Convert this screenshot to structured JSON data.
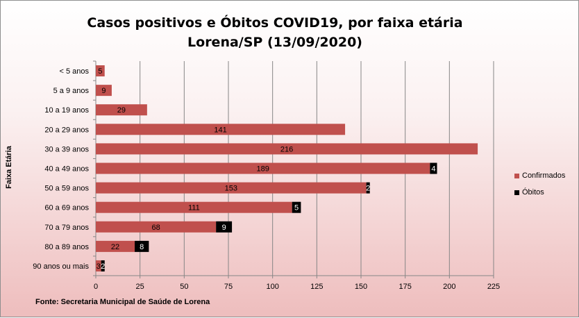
{
  "chart_data": {
    "type": "bar",
    "orientation": "horizontal",
    "stacked": true,
    "title_line1": "Casos positivos e Óbitos COVID19, por faixa etária",
    "title_line2": "Lorena/SP (13/09/2020)",
    "xlabel": "",
    "ylabel": "Faixa Etária",
    "xlim": [
      0,
      225
    ],
    "xticks": [
      0,
      25,
      50,
      75,
      100,
      125,
      150,
      175,
      200,
      225
    ],
    "grid": "vertical",
    "legend_position": "right",
    "categories": [
      "< 5 anos",
      "5 a 9 anos",
      "10 a 19 anos",
      "20 a 29 anos",
      "30 a 39 anos",
      "40 a 49 anos",
      "50 a 59 anos",
      "60 a 69 anos",
      "70 a 79 anos",
      "80 a 89 anos",
      "90 anos ou mais"
    ],
    "series": [
      {
        "name": "Confirmados",
        "color": "#c0504d",
        "values": [
          5,
          9,
          29,
          141,
          216,
          189,
          153,
          111,
          68,
          22,
          3
        ]
      },
      {
        "name": "Óbitos",
        "color": "#000000",
        "values": [
          null,
          null,
          null,
          null,
          null,
          4,
          2,
          5,
          9,
          8,
          2
        ]
      }
    ],
    "source": "Fonte: Secretaria Municipal  de Saúde de Lorena"
  }
}
